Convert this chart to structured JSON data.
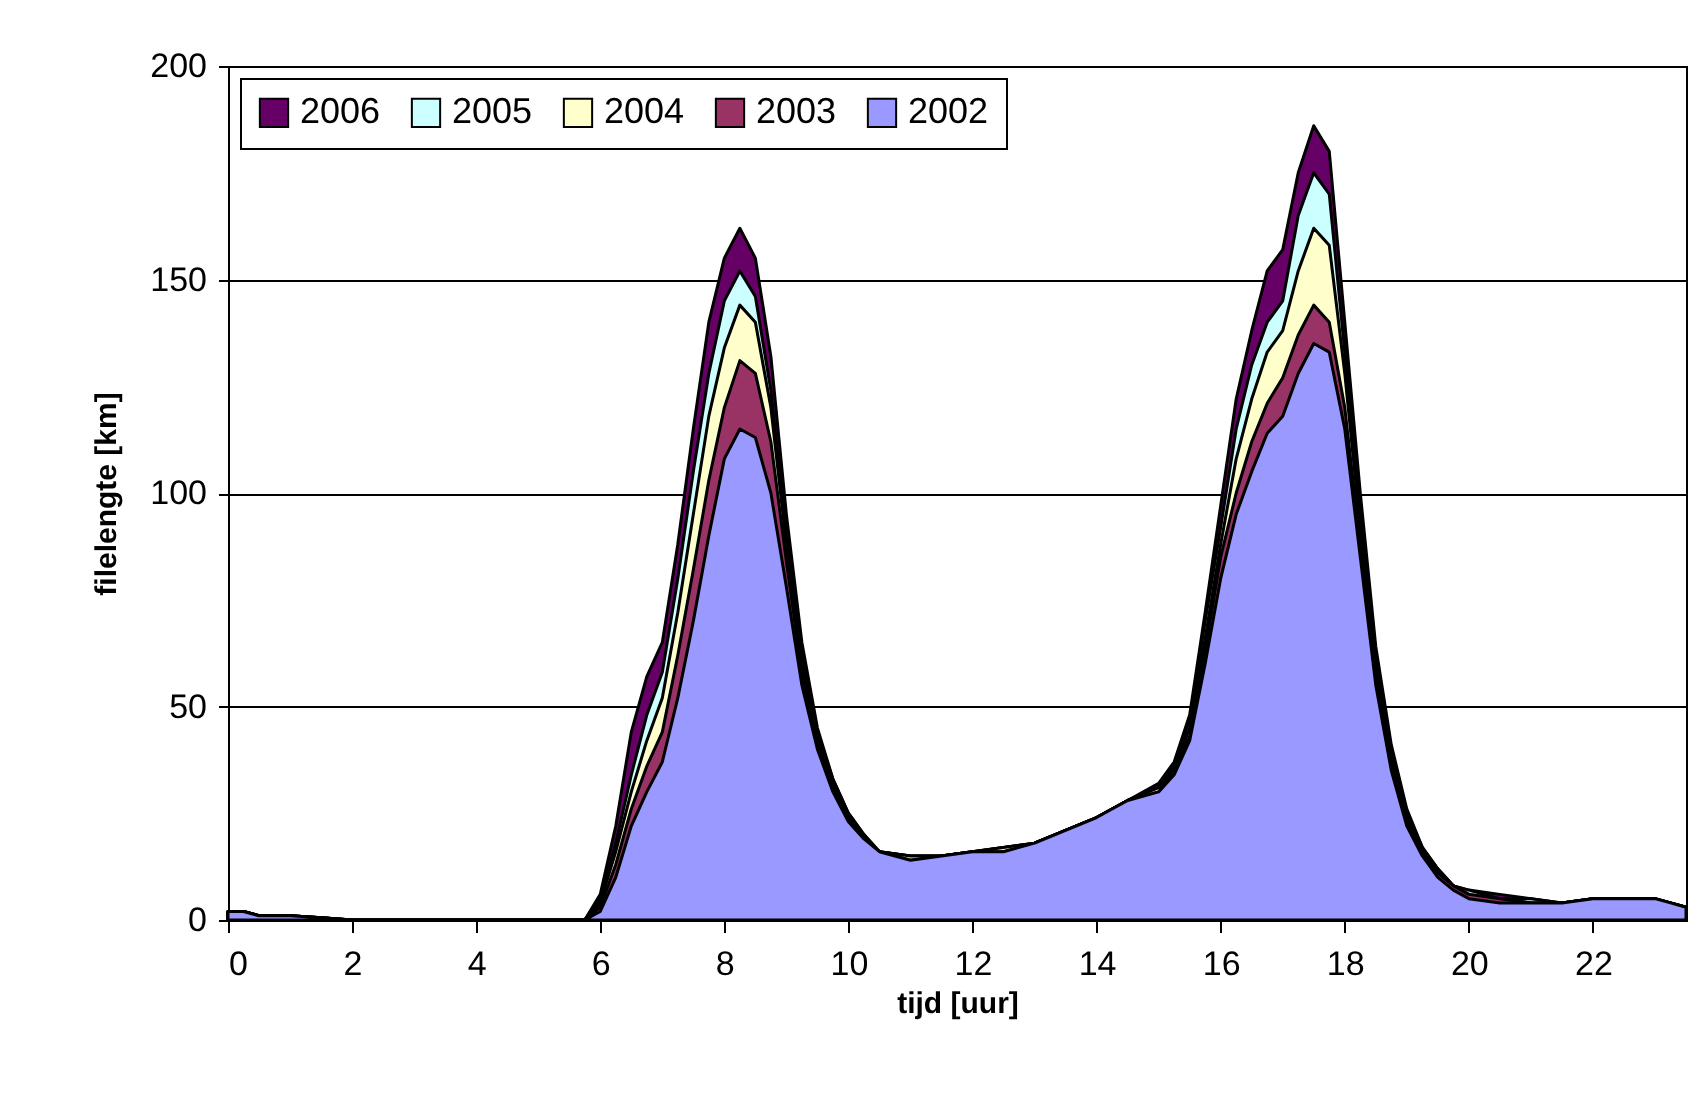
{
  "chart_data": {
    "type": "area",
    "xlabel": "tijd [uur]",
    "ylabel": "filelengte [km]",
    "x": [
      0,
      0.25,
      0.5,
      1,
      1.5,
      2,
      5.75,
      6,
      6.25,
      6.5,
      6.75,
      7,
      7.25,
      7.5,
      7.75,
      8,
      8.25,
      8.5,
      8.75,
      9,
      9.25,
      9.5,
      9.75,
      10,
      10.25,
      10.5,
      11,
      11.5,
      12,
      12.5,
      13,
      13.5,
      14,
      14.5,
      15,
      15.25,
      15.5,
      15.75,
      16,
      16.25,
      16.5,
      16.75,
      17,
      17.25,
      17.5,
      17.75,
      18,
      18.25,
      18.5,
      18.75,
      19,
      19.25,
      19.5,
      19.75,
      20,
      20.5,
      21,
      21.5,
      22,
      23,
      23.25,
      23.5
    ],
    "series": [
      {
        "name": "2006",
        "color": "#660066",
        "values": [
          2,
          2,
          1,
          1,
          0.5,
          0,
          0,
          6,
          22,
          44,
          57,
          65,
          88,
          115,
          140,
          155,
          162,
          155,
          132,
          95,
          65,
          45,
          33,
          25,
          20,
          16,
          15,
          15,
          16,
          17,
          18,
          21,
          24,
          28,
          32,
          37,
          48,
          72,
          97,
          122,
          138,
          152,
          157,
          175,
          186,
          180,
          140,
          100,
          64,
          41,
          26,
          17,
          12,
          8,
          7,
          6,
          5,
          4,
          5,
          5,
          4,
          3
        ]
      },
      {
        "name": "2005",
        "color": "#ccffff",
        "values": [
          2,
          2,
          1,
          1,
          0.5,
          0,
          0,
          5,
          18,
          34,
          48,
          58,
          80,
          105,
          128,
          145,
          152,
          146,
          124,
          90,
          62,
          44,
          33,
          25,
          20,
          16,
          15,
          15,
          16,
          17,
          18,
          21,
          24,
          28,
          31,
          36,
          47,
          70,
          92,
          115,
          130,
          140,
          145,
          165,
          175,
          170,
          133,
          95,
          61,
          39,
          25,
          17,
          12,
          8,
          7,
          5,
          5,
          4,
          5,
          5,
          4,
          3
        ]
      },
      {
        "name": "2004",
        "color": "#ffffcc",
        "values": [
          2,
          2,
          1,
          1,
          0.5,
          0,
          0,
          4,
          16,
          30,
          42,
          52,
          72,
          95,
          118,
          134,
          144,
          140,
          120,
          88,
          60,
          43,
          32,
          24,
          19,
          16,
          15,
          15,
          16,
          17,
          18,
          21,
          24,
          28,
          31,
          35,
          45,
          66,
          88,
          108,
          122,
          133,
          138,
          152,
          162,
          158,
          128,
          92,
          59,
          38,
          24,
          16,
          11,
          8,
          6,
          5,
          4,
          4,
          5,
          5,
          4,
          3
        ]
      },
      {
        "name": "2003",
        "color": "#993366",
        "values": [
          2,
          2,
          1,
          1,
          0.5,
          0,
          0,
          3,
          13,
          26,
          36,
          44,
          62,
          82,
          103,
          120,
          131,
          128,
          112,
          84,
          58,
          42,
          31,
          24,
          19,
          16,
          14,
          15,
          16,
          16,
          18,
          21,
          24,
          28,
          30,
          35,
          43,
          63,
          85,
          100,
          112,
          121,
          127,
          137,
          144,
          140,
          120,
          88,
          57,
          37,
          23,
          16,
          11,
          8,
          6,
          5,
          4,
          4,
          5,
          5,
          4,
          3
        ]
      },
      {
        "name": "2002",
        "color": "#9999ff",
        "values": [
          2,
          2,
          1,
          1,
          0.5,
          0,
          0,
          2,
          10,
          22,
          30,
          37,
          52,
          70,
          90,
          108,
          115,
          113,
          100,
          78,
          55,
          40,
          30,
          23,
          19,
          16,
          14,
          15,
          16,
          16,
          18,
          21,
          24,
          28,
          30,
          34,
          42,
          60,
          80,
          95,
          105,
          114,
          118,
          128,
          135,
          133,
          115,
          85,
          55,
          35,
          22,
          15,
          10,
          7,
          5,
          4,
          4,
          4,
          5,
          5,
          4,
          3
        ]
      }
    ],
    "xlim": [
      0,
      23.5
    ],
    "xticks": [
      0,
      2,
      4,
      6,
      8,
      10,
      12,
      14,
      16,
      18,
      20,
      22
    ],
    "ylim": [
      0,
      200
    ],
    "yticks": [
      0,
      50,
      100,
      150,
      200
    ],
    "grid": "y",
    "legend": "top left"
  }
}
